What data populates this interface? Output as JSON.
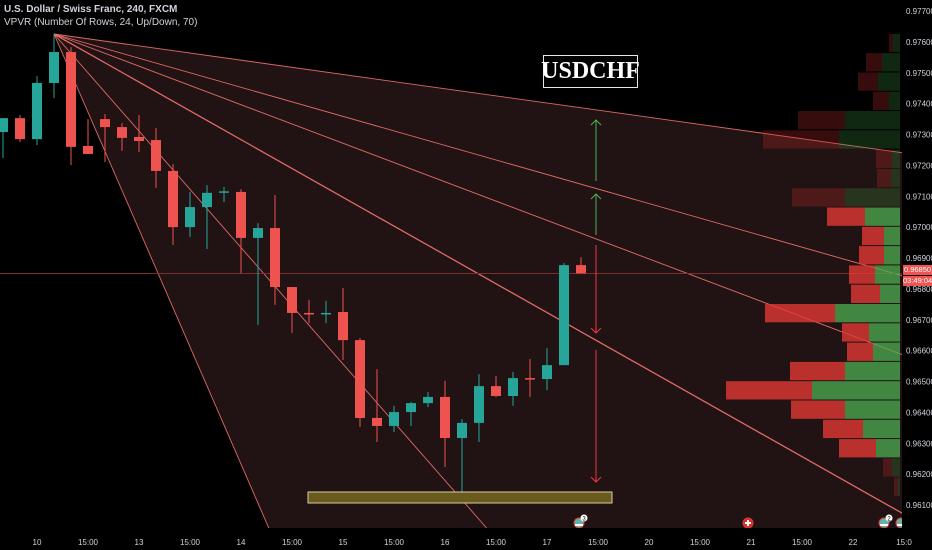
{
  "header": {
    "symbol_line": "U.S. Dollar / Swiss Franc, 240, FXCM",
    "indicator_line": "VPVR (Number Of Rows, 24, Up/Down, 70)"
  },
  "annotation_label": "USDCHF",
  "current_price": "0.96850",
  "countdown": "03:49:04",
  "colors": {
    "up": "#26a69a",
    "down": "#ef5350",
    "fan": "#f4736e",
    "arrow_up": "#4caf50",
    "arrow_down": "#f23645",
    "highlight_box": "#6b5a1e"
  },
  "event_icons": [
    {
      "icon": "us-flag-icon",
      "badge": "3"
    },
    {
      "icon": "swiss-flag-icon",
      "badge": ""
    },
    {
      "icon": "us-flag-icon",
      "badge": "2"
    },
    {
      "icon": "us-flag-icon",
      "badge": ""
    }
  ],
  "chart_data": {
    "type": "candlestick",
    "title": "U.S. Dollar / Swiss Franc, 240, FXCM",
    "ylim": [
      0.9605,
      0.9771
    ],
    "y_ticks": [
      "0.97700",
      "0.97600",
      "0.97500",
      "0.97400",
      "0.97300",
      "0.97200",
      "0.97100",
      "0.97000",
      "0.96900",
      "0.96800",
      "0.96700",
      "0.96600",
      "0.96500",
      "0.96400",
      "0.96300",
      "0.96200",
      "0.96100"
    ],
    "x_ticks": [
      "10",
      "15:00",
      "13",
      "15:00",
      "14",
      "15:00",
      "15",
      "15:00",
      "16",
      "15:00",
      "17",
      "15:00",
      "20",
      "15:00",
      "21",
      "15:00",
      "22",
      "15:0"
    ],
    "ohlc": [
      [
        0.97308,
        0.97353,
        0.97224,
        0.97353
      ],
      [
        0.97353,
        0.97363,
        0.97276,
        0.97285
      ],
      [
        0.97285,
        0.97489,
        0.97266,
        0.97467
      ],
      [
        0.97467,
        0.97626,
        0.97418,
        0.97567
      ],
      [
        0.97567,
        0.97583,
        0.97201,
        0.9726
      ],
      [
        0.97263,
        0.9735,
        0.97237,
        0.97237
      ],
      [
        0.9735,
        0.97366,
        0.97211,
        0.97324
      ],
      [
        0.97324,
        0.97337,
        0.97247,
        0.97289
      ],
      [
        0.97292,
        0.97363,
        0.97243,
        0.97279
      ],
      [
        0.97282,
        0.97321,
        0.97127,
        0.97182
      ],
      [
        0.97182,
        0.97204,
        0.96942,
        0.97
      ],
      [
        0.97,
        0.97114,
        0.96968,
        0.97065
      ],
      [
        0.97065,
        0.97136,
        0.96929,
        0.97111
      ],
      [
        0.97114,
        0.9713,
        0.97081,
        0.97116
      ],
      [
        0.97114,
        0.97123,
        0.96851,
        0.96965
      ],
      [
        0.96965,
        0.97013,
        0.96683,
        0.96997
      ],
      [
        0.96997,
        0.97104,
        0.96748,
        0.96806
      ],
      [
        0.96806,
        0.96806,
        0.96657,
        0.96722
      ],
      [
        0.96722,
        0.96764,
        0.96689,
        0.96719
      ],
      [
        0.96719,
        0.96761,
        0.96689,
        0.96722
      ],
      [
        0.96725,
        0.96803,
        0.9657,
        0.96634
      ],
      [
        0.96634,
        0.96641,
        0.96353,
        0.96382
      ],
      [
        0.96382,
        0.9654,
        0.96304,
        0.96356
      ],
      [
        0.96356,
        0.96421,
        0.96336,
        0.96401
      ],
      [
        0.96401,
        0.96434,
        0.96356,
        0.9643
      ],
      [
        0.9643,
        0.96466,
        0.96417,
        0.9645
      ],
      [
        0.9645,
        0.96502,
        0.96223,
        0.96317
      ],
      [
        0.96317,
        0.96378,
        0.96126,
        0.96366
      ],
      [
        0.96366,
        0.96524,
        0.96304,
        0.96485
      ],
      [
        0.96485,
        0.96518,
        0.9645,
        0.96453
      ],
      [
        0.96453,
        0.96531,
        0.96421,
        0.96511
      ],
      [
        0.96511,
        0.96573,
        0.9645,
        0.96508
      ],
      [
        0.96508,
        0.96608,
        0.96472,
        0.96553
      ],
      [
        0.96553,
        0.96884,
        0.96553,
        0.96877
      ],
      [
        0.96877,
        0.96903,
        0.9685,
        0.9685
      ]
    ],
    "volume_profile": {
      "rows": 24,
      "price_range": [
        0.96126,
        0.97626
      ],
      "value_area_percent": 70,
      "bins_top_to_bottom": [
        {
          "up": 7,
          "down": 4,
          "in_value_area": false
        },
        {
          "up": 18,
          "down": 16,
          "in_value_area": false
        },
        {
          "up": 22,
          "down": 20,
          "in_value_area": false
        },
        {
          "up": 11,
          "down": 16,
          "in_value_area": false
        },
        {
          "up": 55,
          "down": 47,
          "in_value_area": false
        },
        {
          "up": 61,
          "down": 76,
          "in_value_area": false
        },
        {
          "up": 8,
          "down": 16,
          "in_value_area": false
        },
        {
          "up": 9,
          "down": 14,
          "in_value_area": false
        },
        {
          "up": 55,
          "down": 53,
          "in_value_area": false
        },
        {
          "up": 35,
          "down": 38,
          "in_value_area": true
        },
        {
          "up": 16,
          "down": 22,
          "in_value_area": true
        },
        {
          "up": 16,
          "down": 25,
          "in_value_area": true
        },
        {
          "up": 25,
          "down": 26,
          "in_value_area": true
        },
        {
          "up": 20,
          "down": 29,
          "in_value_area": true
        },
        {
          "up": 65,
          "down": 70,
          "in_value_area": true
        },
        {
          "up": 31,
          "down": 27,
          "in_value_area": true
        },
        {
          "up": 27,
          "down": 26,
          "in_value_area": true
        },
        {
          "up": 55,
          "down": 55,
          "in_value_area": true
        },
        {
          "up": 88,
          "down": 86,
          "in_value_area": true
        },
        {
          "up": 55,
          "down": 54,
          "in_value_area": true
        },
        {
          "up": 37,
          "down": 40,
          "in_value_area": true
        },
        {
          "up": 24,
          "down": 37,
          "in_value_area": true
        },
        {
          "up": 8,
          "down": 9,
          "in_value_area": false
        },
        {
          "up": 2,
          "down": 4,
          "in_value_area": false
        }
      ]
    }
  }
}
